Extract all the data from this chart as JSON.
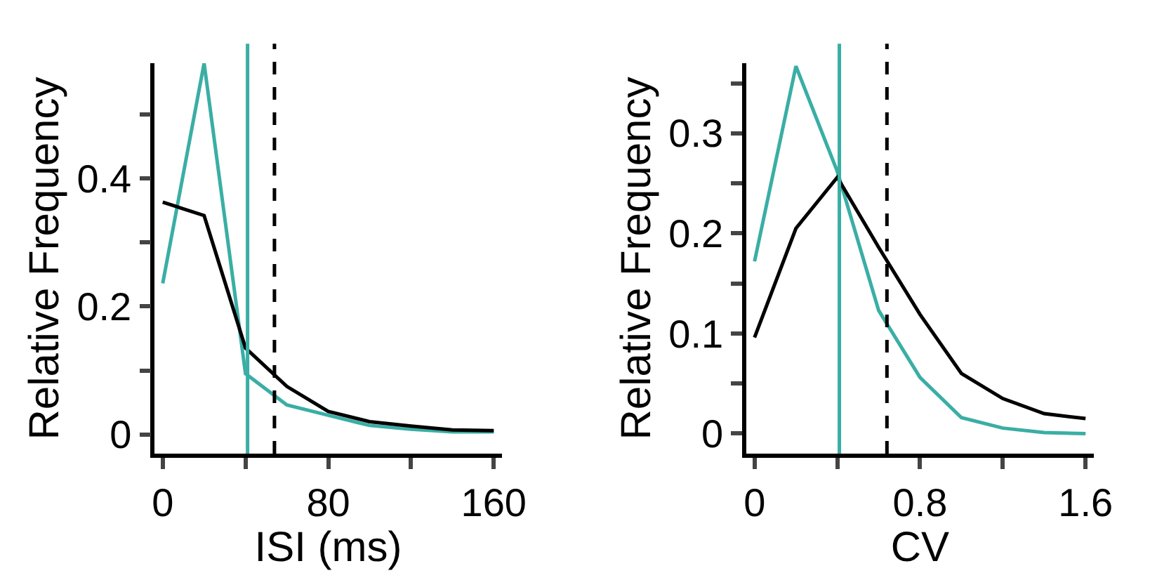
{
  "chart_data": [
    {
      "type": "line",
      "xlabel": "ISI (ms)",
      "ylabel": "Relative Frequency",
      "x": [
        0,
        20,
        40,
        60,
        80,
        100,
        120,
        140,
        160
      ],
      "series": [
        {
          "color": "#3aaea5",
          "values": [
            0.236,
            0.58,
            0.095,
            0.046,
            0.03,
            0.014,
            0.008,
            0.004,
            0.004
          ]
        },
        {
          "color": "#000000",
          "values": [
            0.363,
            0.342,
            0.135,
            0.075,
            0.036,
            0.02,
            0.013,
            0.007,
            0.006
          ]
        }
      ],
      "xlim": [
        -4,
        164
      ],
      "ylim": [
        -0.03,
        0.58
      ],
      "xticks": [
        0,
        {
          "value": 40,
          "label": null
        },
        80,
        {
          "value": 120,
          "label": null
        },
        160
      ],
      "yticks": [
        0,
        {
          "value": 0.1,
          "label": null
        },
        0.2,
        {
          "value": 0.3,
          "label": null
        },
        0.4,
        {
          "value": 0.5,
          "label": null
        }
      ],
      "ref_lines": [
        {
          "axis": "x",
          "value": 41,
          "color": "#3aaea5",
          "line_style": "solid"
        },
        {
          "axis": "x",
          "value": 54,
          "color": "#000000",
          "line_style": "dashed"
        }
      ]
    },
    {
      "type": "line",
      "xlabel": "CV",
      "ylabel": "Relative Frequency",
      "x": [
        0,
        0.2,
        0.4,
        0.6,
        0.8,
        1.0,
        1.2,
        1.4,
        1.6
      ],
      "series": [
        {
          "color": "#3aaea5",
          "values": [
            0.172,
            0.367,
            0.262,
            0.123,
            0.056,
            0.016,
            0.0055,
            0.001,
            0
          ]
        },
        {
          "color": "#000000",
          "values": [
            0.096,
            0.205,
            0.256,
            0.186,
            0.119,
            0.06,
            0.035,
            0.02,
            0.015
          ]
        }
      ],
      "xlim": [
        -0.04,
        1.64
      ],
      "ylim": [
        -0.02,
        0.37
      ],
      "xticks": [
        0,
        {
          "value": 0.4,
          "label": null
        },
        0.8,
        {
          "value": 1.2,
          "label": null
        },
        1.6
      ],
      "yticks": [
        0,
        {
          "value": 0.05,
          "label": null
        },
        0.1,
        {
          "value": 0.15,
          "label": null
        },
        0.2,
        {
          "value": 0.25,
          "label": null
        },
        0.3,
        {
          "value": 0.35,
          "label": null
        }
      ],
      "ref_lines": [
        {
          "axis": "x",
          "value": 0.41,
          "color": "#3aaea5",
          "line_style": "solid"
        },
        {
          "axis": "x",
          "value": 0.64,
          "color": "#000000",
          "line_style": "dashed"
        }
      ]
    }
  ]
}
